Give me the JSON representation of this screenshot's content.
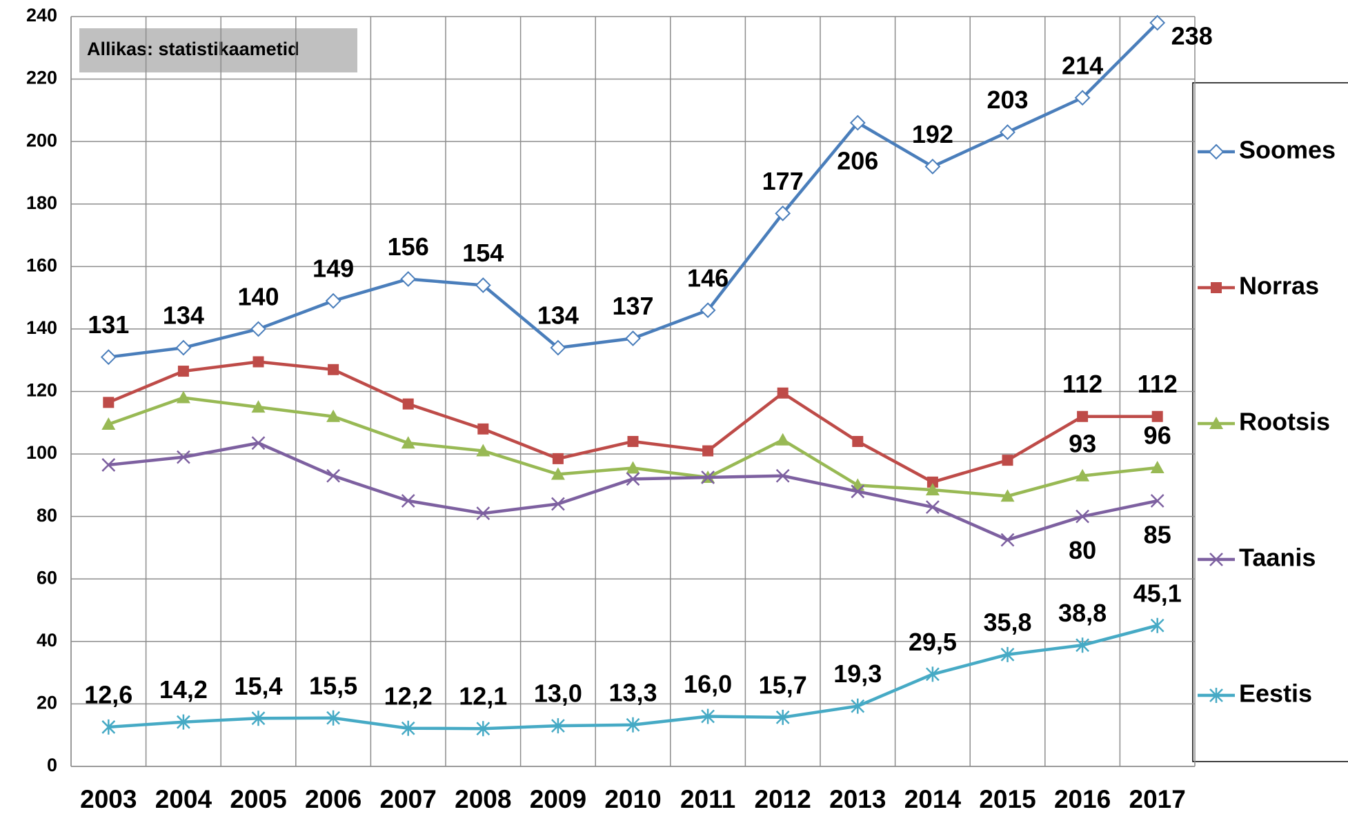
{
  "chart_data": {
    "type": "line",
    "annotation": "Allikas: statistikaametid",
    "categories": [
      "2003",
      "2004",
      "2005",
      "2006",
      "2007",
      "2008",
      "2009",
      "2010",
      "2011",
      "2012",
      "2013",
      "2014",
      "2015",
      "2016",
      "2017"
    ],
    "ylim": [
      0,
      240
    ],
    "yticks": [
      0,
      20,
      40,
      60,
      80,
      100,
      120,
      140,
      160,
      180,
      200,
      220,
      240
    ],
    "grid": true,
    "legend": "right",
    "series": [
      {
        "name": "Soomes",
        "color": "#4a7ebb",
        "marker": "diamond",
        "values": [
          131,
          134,
          140,
          149,
          156,
          154,
          134,
          137,
          146,
          177,
          206,
          192,
          203,
          214,
          238
        ]
      },
      {
        "name": "Norras",
        "color": "#be4b48",
        "marker": "square",
        "values": [
          116.5,
          126.5,
          129.5,
          127,
          116,
          108,
          98.5,
          104,
          101,
          119.5,
          104,
          91,
          98,
          112,
          112
        ],
        "value_labels": [
          null,
          null,
          null,
          null,
          null,
          null,
          null,
          null,
          null,
          null,
          null,
          null,
          null,
          "112",
          "112"
        ]
      },
      {
        "name": "Rootsis",
        "color": "#98b954",
        "marker": "triangle",
        "values": [
          109.5,
          118,
          115,
          112,
          103.5,
          101,
          93.5,
          95.5,
          92.5,
          104.5,
          90,
          88.5,
          86.5,
          93,
          95.6
        ],
        "value_labels": [
          null,
          null,
          null,
          null,
          null,
          null,
          null,
          null,
          null,
          null,
          null,
          null,
          null,
          "93",
          "96"
        ]
      },
      {
        "name": "Taanis",
        "color": "#7d60a0",
        "marker": "x",
        "values": [
          96.5,
          99,
          103.5,
          93,
          85,
          81,
          84,
          92,
          92.5,
          93,
          88,
          83,
          72.5,
          80,
          85
        ],
        "value_labels": [
          null,
          null,
          null,
          null,
          null,
          null,
          null,
          null,
          null,
          null,
          null,
          null,
          null,
          "80",
          "85"
        ]
      },
      {
        "name": "Eestis",
        "color": "#46aac5",
        "marker": "star",
        "values": [
          12.6,
          14.2,
          15.4,
          15.5,
          12.2,
          12.1,
          13.0,
          13.3,
          16.0,
          15.7,
          19.3,
          29.5,
          35.8,
          38.8,
          45.1
        ],
        "value_labels": [
          "12,6",
          "14,2",
          "15,4",
          "15,5",
          "12,2",
          "12,1",
          "13,0",
          "13,3",
          "16,0",
          "15,7",
          "19,3",
          "29,5",
          "35,8",
          "38,8",
          "45,1"
        ]
      }
    ]
  }
}
